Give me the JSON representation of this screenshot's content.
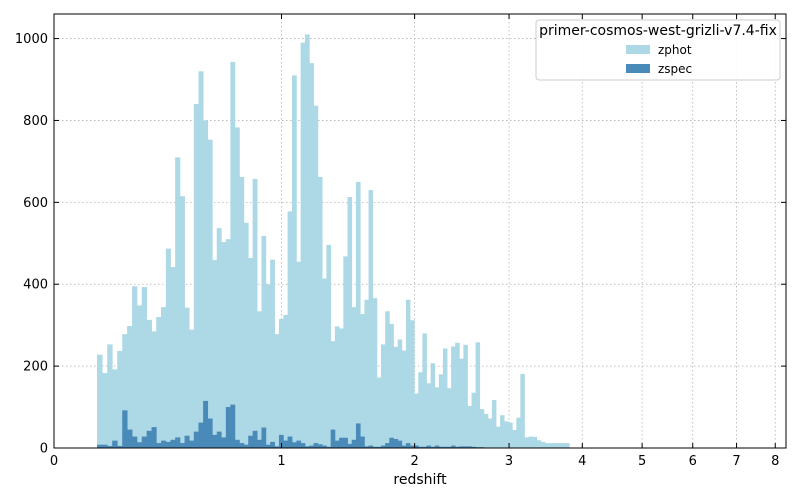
{
  "chart_data": {
    "type": "bar",
    "xlabel": "redshift",
    "ylabel": "",
    "x_scale": "log(1+z)",
    "x_ticks": [
      0,
      1,
      2,
      3,
      4,
      5,
      6,
      7,
      8
    ],
    "y_ticks": [
      0,
      200,
      400,
      600,
      800,
      1000
    ],
    "xlim": [
      0,
      8.3
    ],
    "ylim": [
      0,
      1060
    ],
    "grid": true,
    "legend": {
      "title": "primer-cosmos-west-grizli-v7.4-fix",
      "placement": "top-right"
    },
    "series": [
      {
        "name": "zphot",
        "color": "#add8e6",
        "values": [
          [
            0.149,
            228
          ],
          [
            0.167,
            183
          ],
          [
            0.185,
            253
          ],
          [
            0.203,
            192
          ],
          [
            0.222,
            237
          ],
          [
            0.24,
            278
          ],
          [
            0.259,
            298
          ],
          [
            0.278,
            395
          ],
          [
            0.297,
            348
          ],
          [
            0.316,
            393
          ],
          [
            0.336,
            313
          ],
          [
            0.356,
            285
          ],
          [
            0.375,
            320
          ],
          [
            0.396,
            344
          ],
          [
            0.416,
            487
          ],
          [
            0.436,
            442
          ],
          [
            0.457,
            710
          ],
          [
            0.478,
            615
          ],
          [
            0.499,
            343
          ],
          [
            0.52,
            289
          ],
          [
            0.542,
            840
          ],
          [
            0.564,
            920
          ],
          [
            0.586,
            800
          ],
          [
            0.608,
            753
          ],
          [
            0.631,
            459
          ],
          [
            0.653,
            537
          ],
          [
            0.676,
            503
          ],
          [
            0.7,
            510
          ],
          [
            0.723,
            943
          ],
          [
            0.747,
            783
          ],
          [
            0.771,
            662
          ],
          [
            0.795,
            550
          ],
          [
            0.819,
            464
          ],
          [
            0.844,
            657
          ],
          [
            0.869,
            334
          ],
          [
            0.894,
            518
          ],
          [
            0.919,
            400
          ],
          [
            0.945,
            460
          ],
          [
            0.971,
            278
          ],
          [
            0.998,
            315
          ],
          [
            1.024,
            325
          ],
          [
            1.051,
            578
          ],
          [
            1.079,
            910
          ],
          [
            1.106,
            455
          ],
          [
            1.134,
            990
          ],
          [
            1.162,
            1010
          ],
          [
            1.191,
            940
          ],
          [
            1.219,
            836
          ],
          [
            1.249,
            662
          ],
          [
            1.278,
            414
          ],
          [
            1.308,
            496
          ],
          [
            1.338,
            261
          ],
          [
            1.368,
            297
          ],
          [
            1.399,
            292
          ],
          [
            1.43,
            468
          ],
          [
            1.461,
            613
          ],
          [
            1.493,
            344
          ],
          [
            1.525,
            650
          ],
          [
            1.558,
            327
          ],
          [
            1.591,
            362
          ],
          [
            1.624,
            630
          ],
          [
            1.657,
            366
          ],
          [
            1.691,
            172
          ],
          [
            1.725,
            253
          ],
          [
            1.76,
            334
          ],
          [
            1.795,
            303
          ],
          [
            1.831,
            247
          ],
          [
            1.867,
            265
          ],
          [
            1.903,
            238
          ],
          [
            1.94,
            362
          ],
          [
            1.977,
            312
          ],
          [
            2.015,
            133
          ],
          [
            2.053,
            185
          ],
          [
            2.091,
            280
          ],
          [
            2.13,
            158
          ],
          [
            2.17,
            207
          ],
          [
            2.21,
            148
          ],
          [
            2.25,
            180
          ],
          [
            2.291,
            243
          ],
          [
            2.332,
            146
          ],
          [
            2.374,
            248
          ],
          [
            2.416,
            257
          ],
          [
            2.459,
            218
          ],
          [
            2.502,
            252
          ],
          [
            2.546,
            103
          ],
          [
            2.59,
            135
          ],
          [
            2.635,
            258
          ],
          [
            2.681,
            95
          ],
          [
            2.727,
            83
          ],
          [
            2.773,
            72
          ],
          [
            2.82,
            117
          ],
          [
            2.868,
            52
          ],
          [
            2.916,
            80
          ],
          [
            2.965,
            65
          ],
          [
            3.014,
            62
          ],
          [
            3.064,
            44
          ],
          [
            3.115,
            74
          ],
          [
            3.166,
            181
          ],
          [
            3.218,
            26
          ],
          [
            3.271,
            28
          ],
          [
            3.324,
            27
          ],
          [
            3.378,
            19
          ],
          [
            3.433,
            15
          ],
          [
            3.488,
            12
          ],
          [
            3.544,
            12
          ],
          [
            3.601,
            12
          ],
          [
            3.659,
            12
          ],
          [
            3.717,
            12
          ],
          [
            3.776,
            12
          ]
        ]
      },
      {
        "name": "zspec",
        "color": "#4a8ab8",
        "values": [
          [
            0.149,
            8
          ],
          [
            0.167,
            8
          ],
          [
            0.185,
            5
          ],
          [
            0.203,
            18
          ],
          [
            0.222,
            5
          ],
          [
            0.24,
            92
          ],
          [
            0.259,
            45
          ],
          [
            0.278,
            28
          ],
          [
            0.297,
            14
          ],
          [
            0.316,
            28
          ],
          [
            0.336,
            42
          ],
          [
            0.356,
            51
          ],
          [
            0.375,
            12
          ],
          [
            0.396,
            18
          ],
          [
            0.416,
            15
          ],
          [
            0.436,
            20
          ],
          [
            0.457,
            26
          ],
          [
            0.478,
            12
          ],
          [
            0.499,
            30
          ],
          [
            0.52,
            18
          ],
          [
            0.542,
            40
          ],
          [
            0.564,
            62
          ],
          [
            0.586,
            115
          ],
          [
            0.608,
            72
          ],
          [
            0.631,
            32
          ],
          [
            0.653,
            40
          ],
          [
            0.676,
            26
          ],
          [
            0.7,
            100
          ],
          [
            0.723,
            106
          ],
          [
            0.747,
            20
          ],
          [
            0.771,
            12
          ],
          [
            0.795,
            8
          ],
          [
            0.819,
            30
          ],
          [
            0.844,
            42
          ],
          [
            0.869,
            20
          ],
          [
            0.894,
            50
          ],
          [
            0.919,
            8
          ],
          [
            0.945,
            15
          ],
          [
            0.971,
            4
          ],
          [
            0.998,
            32
          ],
          [
            1.024,
            18
          ],
          [
            1.051,
            28
          ],
          [
            1.079,
            14
          ],
          [
            1.106,
            18
          ],
          [
            1.134,
            12
          ],
          [
            1.162,
            4
          ],
          [
            1.191,
            6
          ],
          [
            1.219,
            12
          ],
          [
            1.249,
            9
          ],
          [
            1.278,
            6
          ],
          [
            1.308,
            3
          ],
          [
            1.338,
            45
          ],
          [
            1.368,
            18
          ],
          [
            1.399,
            25
          ],
          [
            1.43,
            25
          ],
          [
            1.461,
            10
          ],
          [
            1.493,
            20
          ],
          [
            1.525,
            60
          ],
          [
            1.558,
            28
          ],
          [
            1.591,
            4
          ],
          [
            1.624,
            6
          ],
          [
            1.657,
            3
          ],
          [
            1.691,
            3
          ],
          [
            1.725,
            6
          ],
          [
            1.76,
            12
          ],
          [
            1.795,
            25
          ],
          [
            1.831,
            22
          ],
          [
            1.867,
            18
          ],
          [
            1.903,
            6
          ],
          [
            1.94,
            12
          ],
          [
            1.977,
            6
          ],
          [
            2.015,
            6
          ],
          [
            2.053,
            3
          ],
          [
            2.091,
            3
          ],
          [
            2.13,
            6
          ],
          [
            2.17,
            3
          ],
          [
            2.21,
            6
          ],
          [
            2.25,
            3
          ],
          [
            2.291,
            3
          ],
          [
            2.332,
            3
          ],
          [
            2.374,
            6
          ],
          [
            2.416,
            3
          ],
          [
            2.459,
            4
          ],
          [
            2.502,
            4
          ],
          [
            2.546,
            4
          ],
          [
            2.59,
            3
          ],
          [
            2.635,
            2
          ],
          [
            2.681,
            2
          ],
          [
            2.727,
            1
          ],
          [
            2.773,
            1
          ],
          [
            2.82,
            1
          ],
          [
            2.868,
            1
          ],
          [
            2.916,
            1
          ],
          [
            2.965,
            1
          ],
          [
            3.014,
            1
          ],
          [
            3.064,
            1
          ],
          [
            3.115,
            1
          ],
          [
            3.166,
            1
          ],
          [
            3.218,
            1
          ],
          [
            3.271,
            1
          ],
          [
            3.324,
            1
          ],
          [
            3.378,
            1
          ],
          [
            3.433,
            1
          ],
          [
            3.488,
            1
          ],
          [
            3.544,
            1
          ],
          [
            3.601,
            1
          ],
          [
            3.659,
            1
          ],
          [
            3.717,
            1
          ],
          [
            3.776,
            1
          ]
        ]
      }
    ]
  }
}
